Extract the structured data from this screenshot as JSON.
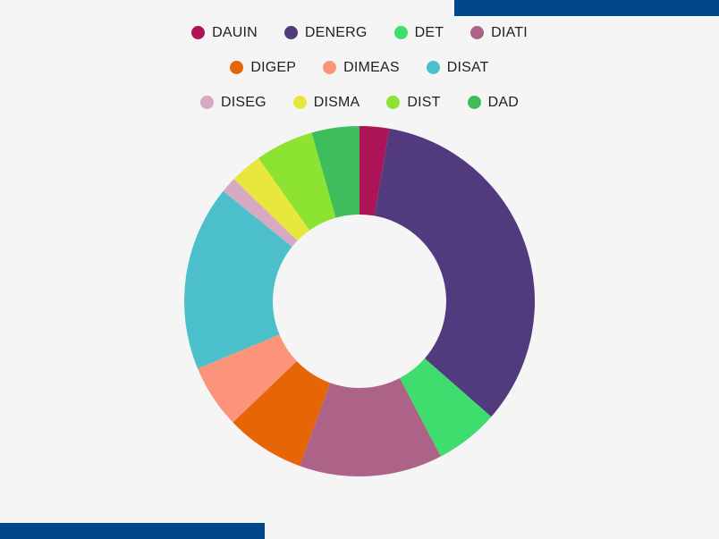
{
  "colors": {
    "background": "#f5f5f5",
    "accent": "#00468b"
  },
  "chart_data": {
    "type": "pie",
    "donut": true,
    "title": "",
    "legend_position": "top",
    "categories": [
      "DAUIN",
      "DENERG",
      "DET",
      "DIATI",
      "DIGEP",
      "DIMEAS",
      "DISAT",
      "DISEG",
      "DISMA",
      "DIST",
      "DAD"
    ],
    "values": [
      2.8,
      34.5,
      6.0,
      13.5,
      7.5,
      6.0,
      17.5,
      1.5,
      3.0,
      5.5,
      4.5
    ],
    "colors": [
      "#ad1457",
      "#523a7e",
      "#3fdc6e",
      "#ad6387",
      "#e56507",
      "#fc947c",
      "#4bc0cb",
      "#d7a9c3",
      "#e8e73e",
      "#8ce332",
      "#3fbd5c"
    ],
    "legend_rows": [
      [
        0,
        1,
        2,
        3
      ],
      [
        4,
        5,
        6
      ],
      [
        7,
        8,
        9,
        10
      ]
    ]
  }
}
